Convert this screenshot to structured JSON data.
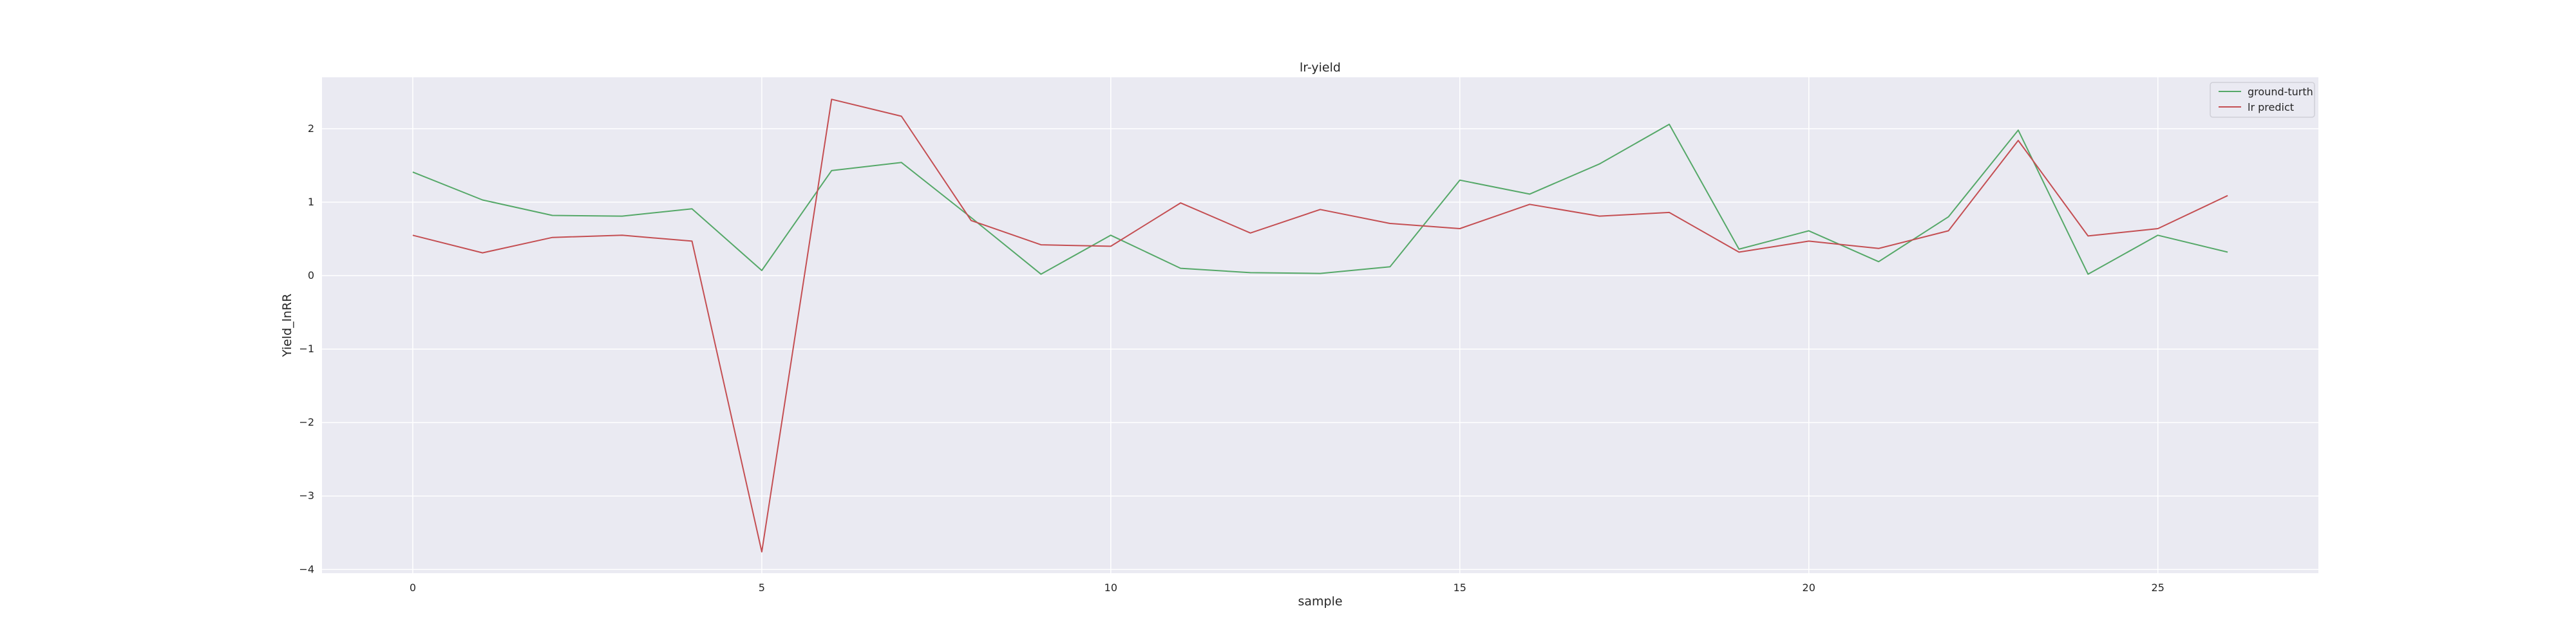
{
  "chart_data": {
    "type": "line",
    "title": "lr-yield",
    "xlabel": "sample",
    "ylabel": "Yield_lnRR",
    "xlim": [
      -1.3,
      27.3
    ],
    "ylim": [
      -4.05,
      2.7
    ],
    "xticks": [
      0,
      5,
      10,
      15,
      20,
      25
    ],
    "yticks": [
      -4,
      -3,
      -2,
      -1,
      0,
      1,
      2
    ],
    "ytick_labels": [
      "−4",
      "−3",
      "−2",
      "−1",
      "0",
      "1",
      "2"
    ],
    "grid": true,
    "legend_position": "top-right",
    "background_color": "#eaeaf2",
    "x": [
      0,
      1,
      2,
      3,
      4,
      5,
      6,
      7,
      8,
      9,
      10,
      11,
      12,
      13,
      14,
      15,
      16,
      17,
      18,
      19,
      20,
      21,
      22,
      23,
      24,
      25,
      26
    ],
    "series": [
      {
        "name": "ground-turth",
        "color": "#55a868",
        "values": [
          1.41,
          1.03,
          0.82,
          0.81,
          0.91,
          0.07,
          1.43,
          1.54,
          0.79,
          0.02,
          0.55,
          0.1,
          0.04,
          0.03,
          0.12,
          1.3,
          1.11,
          1.52,
          2.06,
          0.36,
          0.61,
          0.19,
          0.8,
          1.98,
          0.02,
          0.55,
          0.32
        ]
      },
      {
        "name": "lr predict",
        "color": "#c44e52",
        "values": [
          0.55,
          0.31,
          0.52,
          0.55,
          0.47,
          -3.76,
          2.4,
          2.17,
          0.75,
          0.42,
          0.4,
          0.99,
          0.58,
          0.9,
          0.71,
          0.64,
          0.97,
          0.81,
          0.86,
          0.32,
          0.47,
          0.37,
          0.61,
          1.84,
          0.54,
          0.64,
          1.09
        ]
      }
    ]
  }
}
